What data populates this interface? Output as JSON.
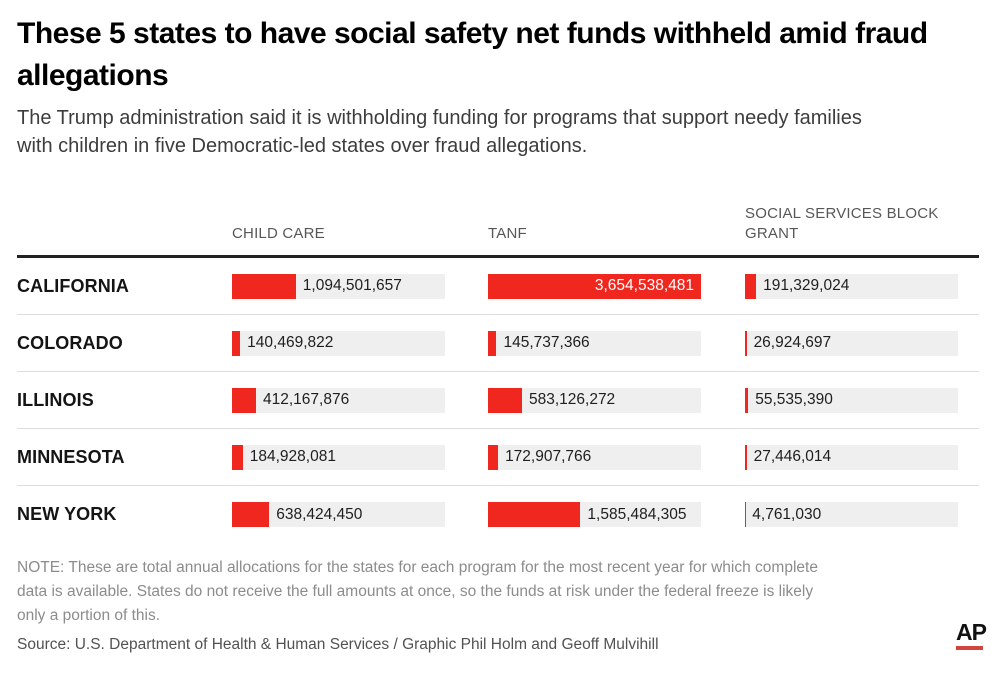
{
  "header": {
    "title": "These 5 states to have social safety net funds withheld amid fraud allegations",
    "subtitle": "The Trump administration said it is withholding funding for programs that support needy families with children in five Democratic-led states over fraud allegations."
  },
  "chart_data": {
    "type": "bar",
    "orientation": "horizontal",
    "title": "These 5 states to have social safety net funds withheld amid fraud allegations",
    "columns": [
      "CHILD CARE",
      "TANF",
      "SOCIAL SERVICES BLOCK GRANT"
    ],
    "categories": [
      "CALIFORNIA",
      "COLORADO",
      "ILLINOIS",
      "MINNESOTA",
      "NEW YORK"
    ],
    "series": [
      {
        "name": "CHILD CARE",
        "values": [
          1094501657,
          140469822,
          412167876,
          184928081,
          638424450
        ]
      },
      {
        "name": "TANF",
        "values": [
          3654538481,
          145737366,
          583126272,
          172907766,
          1585484305
        ]
      },
      {
        "name": "SOCIAL SERVICES BLOCK GRANT",
        "values": [
          191329024,
          26924697,
          55535390,
          27446014,
          4761030
        ]
      }
    ],
    "max_value": 3654538481,
    "bar_color": "#ef271f",
    "track_color": "#efefef",
    "grid": false,
    "legend_position": "column-headers",
    "value_labels_shown": true
  },
  "footer": {
    "note": "NOTE: These are total annual allocations for the states for each program for the most recent year for which complete data is available. States do not receive the full amounts at once, so the funds at risk under the federal freeze is likely only a portion of this.",
    "source": "Source: U.S. Department of Health & Human Services / Graphic Phil Holm and Geoff Mulvihill",
    "logo_text": "AP",
    "logo_underline_color": "#d2453c"
  }
}
